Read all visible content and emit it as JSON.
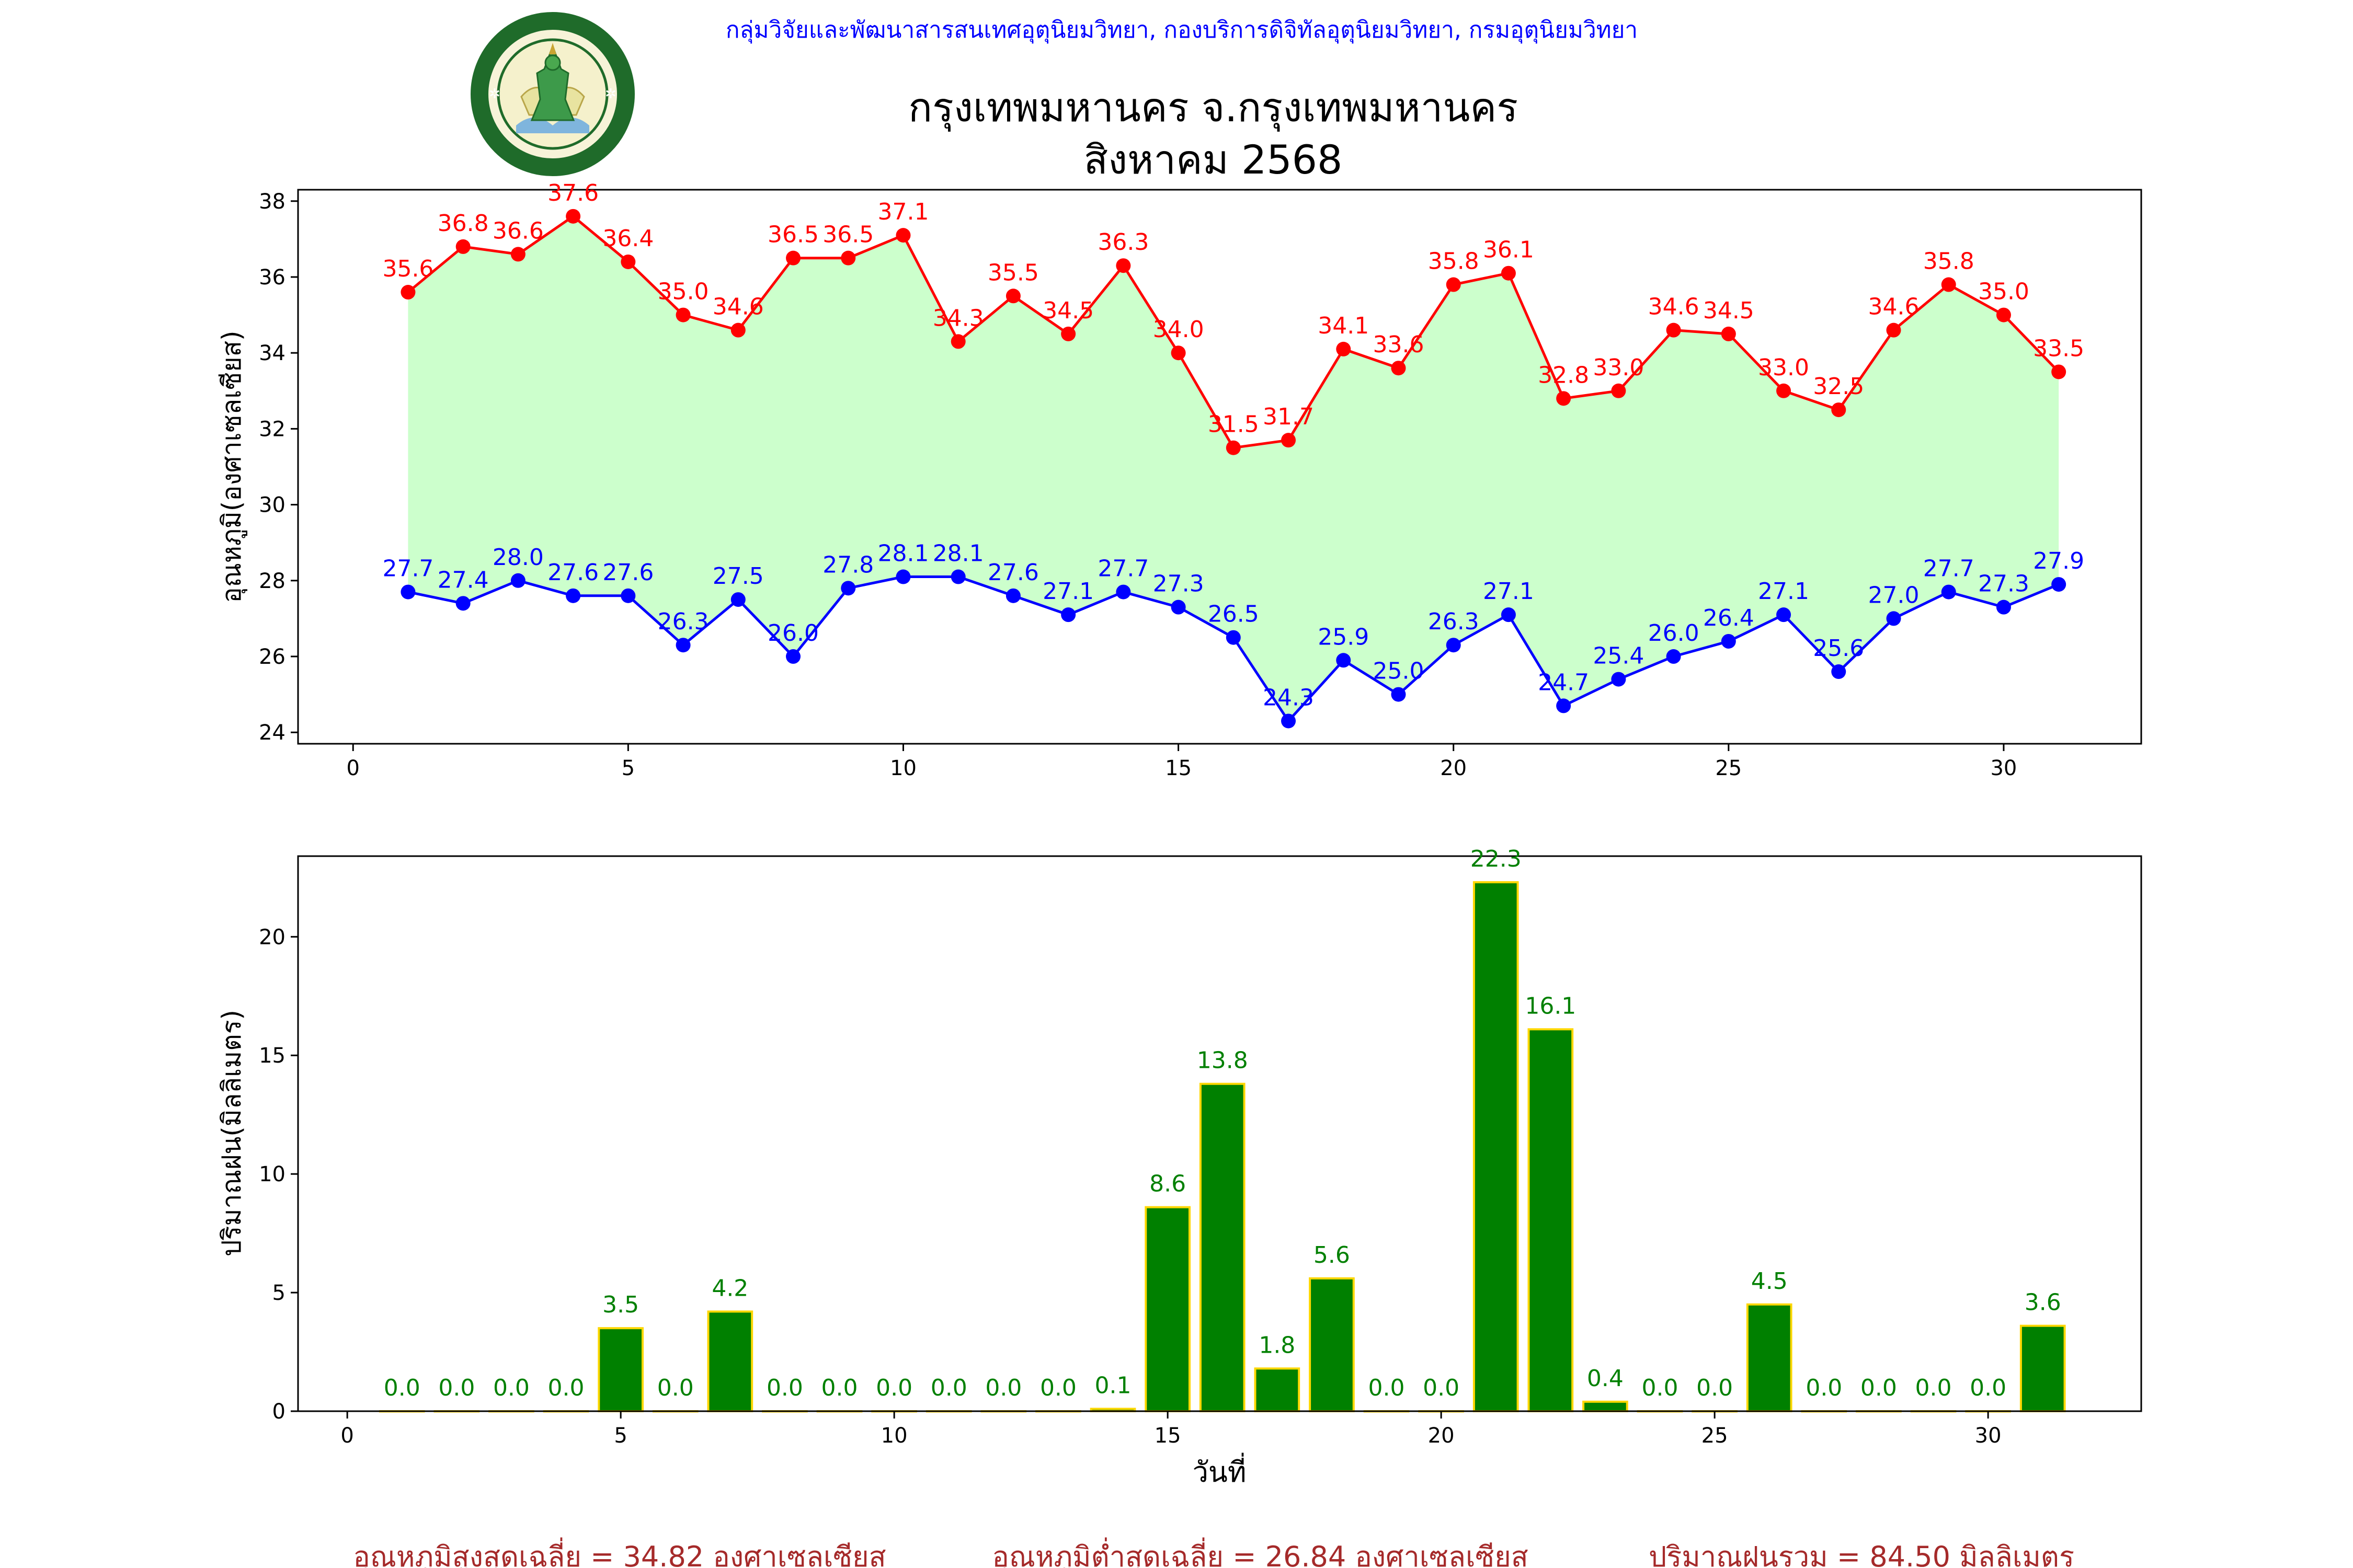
{
  "header": {
    "org": "กลุ่มวิจัยและพัฒนาสารสนเทศอุตุนิยมวิทยา, กองบริการดิจิทัลอุตุนิยมวิทยา, กรมอุตุนิยมวิทยา",
    "title_line1": "กรุงเทพมหานคร จ.กรุงเทพมหานคร",
    "title_line2": "สิงหาคม 2568",
    "logo_text_top": "กรมอุตุนิยมวิทยา",
    "logo_text_bottom": "METEOROLOGICAL DEPARTMENT"
  },
  "colors": {
    "max": "#ff0000",
    "min": "#0000ff",
    "fill": "#ccffcc",
    "bar": "#008000",
    "bar_edge": "#ffd700",
    "org_text": "#0000ff",
    "summary_text": "#a52a2a"
  },
  "chart_data": [
    {
      "type": "line",
      "ylabel": "อุณหภูมิ(องศาเซลเซียส)",
      "xlabel": "",
      "xlim": [
        -1,
        32.5
      ],
      "ylim": [
        23.7,
        38.3
      ],
      "xticks": [
        0,
        5,
        10,
        15,
        20,
        25,
        30
      ],
      "yticks": [
        24,
        26,
        28,
        30,
        32,
        34,
        36,
        38
      ],
      "x": [
        1,
        2,
        3,
        4,
        5,
        6,
        7,
        8,
        9,
        10,
        11,
        12,
        13,
        14,
        15,
        16,
        17,
        18,
        19,
        20,
        21,
        22,
        23,
        24,
        25,
        26,
        27,
        28,
        29,
        30,
        31
      ],
      "series": [
        {
          "key": "max",
          "values": [
            35.6,
            36.8,
            36.6,
            37.6,
            36.4,
            35.0,
            34.6,
            36.5,
            36.5,
            37.1,
            34.3,
            35.5,
            34.5,
            36.3,
            34.0,
            31.5,
            31.7,
            34.1,
            33.6,
            35.8,
            36.1,
            32.8,
            33.0,
            34.6,
            34.5,
            33.0,
            32.5,
            34.6,
            35.8,
            35.0,
            33.5
          ]
        },
        {
          "key": "min",
          "values": [
            27.7,
            27.4,
            28.0,
            27.6,
            27.6,
            26.3,
            27.5,
            26.0,
            27.8,
            28.1,
            28.1,
            27.6,
            27.1,
            27.7,
            27.3,
            26.5,
            24.3,
            25.9,
            25.0,
            26.3,
            27.1,
            24.7,
            25.4,
            26.0,
            26.4,
            27.1,
            25.6,
            27.0,
            27.7,
            27.3,
            27.9
          ]
        }
      ]
    },
    {
      "type": "bar",
      "ylabel": "ปริมาณฝน(มิลลิเมตร)",
      "xlabel": "วันที่",
      "xlim": [
        -0.9,
        32.8
      ],
      "ylim": [
        0,
        23.4
      ],
      "xticks": [
        0,
        5,
        10,
        15,
        20,
        25,
        30
      ],
      "yticks": [
        0,
        5,
        10,
        15,
        20
      ],
      "x": [
        1,
        2,
        3,
        4,
        5,
        6,
        7,
        8,
        9,
        10,
        11,
        12,
        13,
        14,
        15,
        16,
        17,
        18,
        19,
        20,
        21,
        22,
        23,
        24,
        25,
        26,
        27,
        28,
        29,
        30,
        31
      ],
      "values": [
        0.0,
        0.0,
        0.0,
        0.0,
        3.5,
        0.0,
        4.2,
        0.0,
        0.0,
        0.0,
        0.0,
        0.0,
        0.0,
        0.1,
        8.6,
        13.8,
        1.8,
        5.6,
        0.0,
        0.0,
        22.3,
        16.1,
        0.4,
        0.0,
        0.0,
        4.5,
        0.0,
        0.0,
        0.0,
        0.0,
        3.6
      ]
    }
  ],
  "summary": {
    "avg_max": "อุณหภูมิสูงสุดเฉลี่ย = 34.82 องศาเซลเซียส",
    "avg_min": "อุณหภูมิต่ำสุดเฉลี่ย = 26.84 องศาเซลเซียส",
    "total_rain": "ปริมาณฝนรวม = 84.50 มิลลิเมตร"
  }
}
